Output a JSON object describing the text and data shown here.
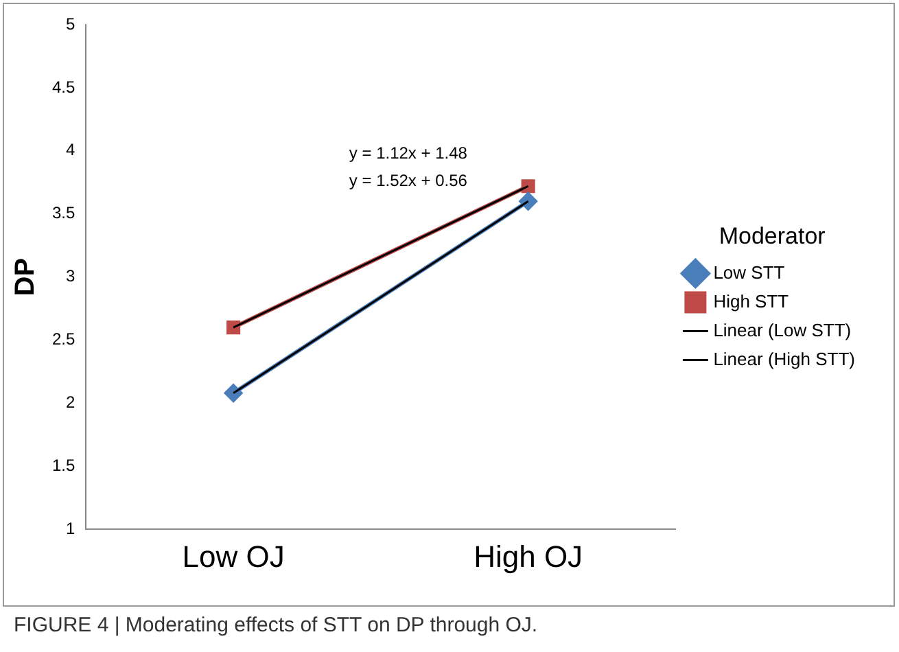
{
  "chart_data": {
    "type": "line",
    "ylabel": "DP",
    "legend_title": "Moderator",
    "categories": [
      "Low OJ",
      "High OJ"
    ],
    "series": [
      {
        "name": "Low STT",
        "color": "#4a7ebb",
        "values": [
          2.08,
          3.6
        ],
        "marker": "diamond"
      },
      {
        "name": "High STT",
        "color": "#be4b48",
        "values": [
          2.6,
          3.72
        ],
        "marker": "square"
      },
      {
        "name": "Linear (Low STT)",
        "color": "#000000",
        "values": [
          2.08,
          3.6
        ],
        "marker": "none"
      },
      {
        "name": "Linear (High STT)",
        "color": "#000000",
        "values": [
          2.6,
          3.72
        ],
        "marker": "none"
      }
    ],
    "ylim": [
      1,
      5
    ],
    "yticks": [
      1,
      1.5,
      2,
      2.5,
      3,
      3.5,
      4,
      4.5,
      5
    ],
    "grid": false,
    "legend": "right",
    "line_style": "solid",
    "annotations": [
      "y = 1.12x + 1.48",
      "y = 1.52x + 0.56",
      "FIGURE 4 | Moderating effects of STT on DP through OJ."
    ]
  }
}
